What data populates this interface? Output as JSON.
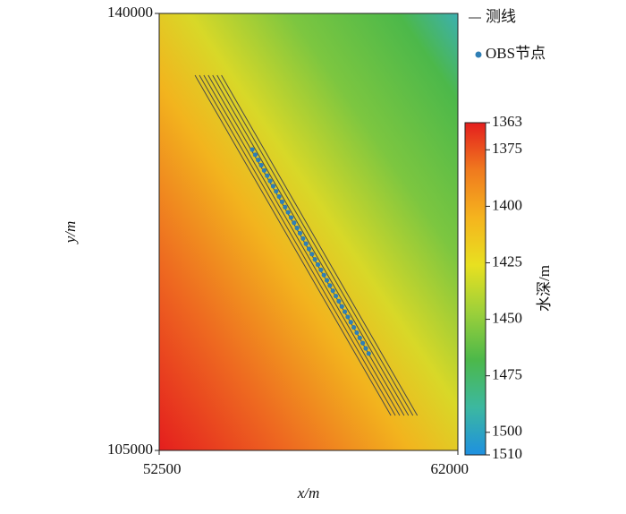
{
  "chart_data": {
    "type": "map",
    "xlabel": "x/m",
    "ylabel": "y/m",
    "xlim": [
      52500,
      62000
    ],
    "xticks": [
      52500,
      62000
    ],
    "ylim": [
      105000,
      140000
    ],
    "yticks": [
      105000,
      140000
    ],
    "lines": {
      "name": "测线",
      "color": "#4a4a4a",
      "segments": [
        {
          "x": [
            53640,
            59870
          ],
          "y": [
            135050,
            107800
          ]
        },
        {
          "x": [
            53780,
            60010
          ],
          "y": [
            135050,
            107800
          ]
        },
        {
          "x": [
            53920,
            60150
          ],
          "y": [
            135050,
            107800
          ]
        },
        {
          "x": [
            54060,
            60290
          ],
          "y": [
            135050,
            107800
          ]
        },
        {
          "x": [
            54200,
            60430
          ],
          "y": [
            135050,
            107800
          ]
        },
        {
          "x": [
            54340,
            60570
          ],
          "y": [
            135050,
            107800
          ]
        },
        {
          "x": [
            54480,
            60710
          ],
          "y": [
            135050,
            107800
          ]
        }
      ]
    },
    "points": {
      "name": "OBS节点",
      "color": "#2f7fb5",
      "x": [
        55460,
        55555,
        55650,
        55745,
        55840,
        55935,
        56030,
        56125,
        56220,
        56315,
        56410,
        56505,
        56600,
        56695,
        56790,
        56885,
        56980,
        57075,
        57170,
        57265,
        57360,
        57455,
        57550,
        57645,
        57740,
        57835,
        57930,
        58025,
        58120,
        58215,
        58310,
        58405,
        58500,
        58595,
        58690,
        58785,
        58880,
        58975,
        59070,
        59165
      ],
      "y": [
        129100,
        128681,
        128262,
        127843,
        127424,
        127005,
        126586,
        126167,
        125748,
        125329,
        124910,
        124491,
        124072,
        123653,
        123234,
        122815,
        122396,
        121977,
        121558,
        121139,
        120720,
        120301,
        119882,
        119463,
        119044,
        118625,
        118206,
        117787,
        117368,
        116949,
        116530,
        116111,
        115692,
        115273,
        114854,
        114435,
        114016,
        113597,
        113178,
        112759
      ]
    },
    "colorbar": {
      "label": "水深/m",
      "lim": [
        1363,
        1510
      ],
      "ticks": [
        1363,
        1375,
        1400,
        1425,
        1450,
        1475,
        1500,
        1510
      ],
      "colormap": [
        "#e41e1e",
        "#f07a1e",
        "#f5b41e",
        "#e8e020",
        "#9cd03a",
        "#4cb84a",
        "#3cb8a0",
        "#1e90e0"
      ]
    }
  }
}
